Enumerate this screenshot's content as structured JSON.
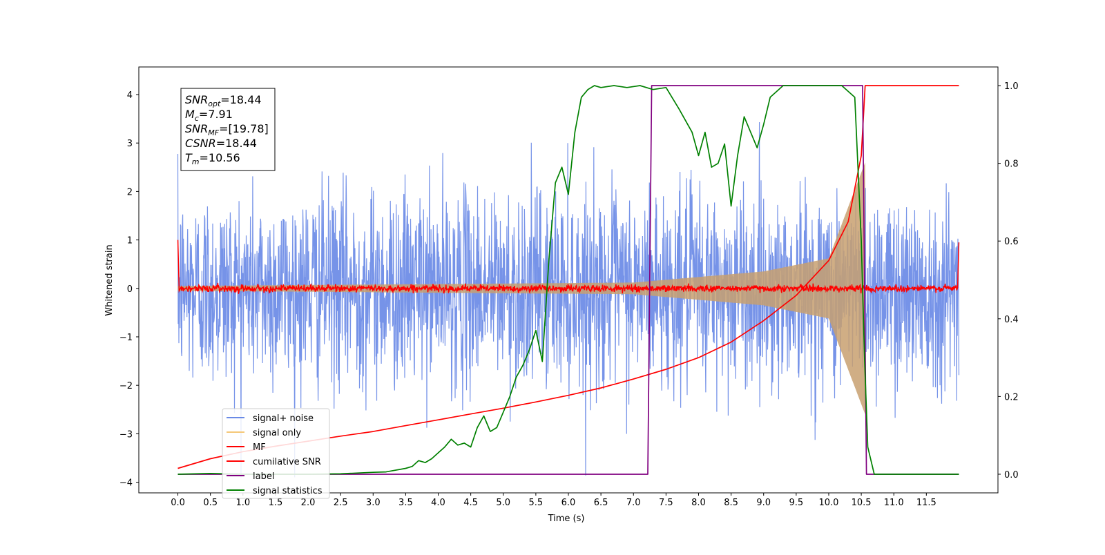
{
  "chart_data": {
    "type": "line",
    "xlabel": "Time (s)",
    "ylabel": "Whitened strain",
    "y2label": "",
    "xlim": [
      -0.6,
      12.6
    ],
    "ylim": [
      -4.22,
      4.57
    ],
    "y2lim": [
      -0.048,
      1.048
    ],
    "xticks": [
      "0.0",
      "0.5",
      "1.0",
      "1.5",
      "2.0",
      "2.5",
      "3.0",
      "3.5",
      "4.0",
      "4.5",
      "5.0",
      "5.5",
      "6.0",
      "6.5",
      "7.0",
      "7.5",
      "8.0",
      "8.5",
      "9.0",
      "9.5",
      "10.0",
      "10.5",
      "11.0",
      "11.5"
    ],
    "yticks": [
      "4",
      "3",
      "2",
      "1",
      "0",
      "−1",
      "−2",
      "−3",
      "−4"
    ],
    "y2ticks": [
      "1.0",
      "0.8",
      "0.6",
      "0.4",
      "0.2",
      "0.0"
    ],
    "annotations": [
      {
        "sym": "SNR",
        "sub": "opt",
        "eq": "=18.44"
      },
      {
        "sym": "M",
        "sub": "c",
        "eq": "=7.91"
      },
      {
        "sym": "SNR",
        "sub": "MF",
        "eq": "=[19.78]"
      },
      {
        "sym": "CSNR",
        "sub": "",
        "eq": "=18.44"
      },
      {
        "sym": "T",
        "sub": "m",
        "eq": "=10.56"
      }
    ],
    "legend": {
      "placement": "lower-left",
      "entries": [
        {
          "label": "signal+ noise",
          "color": "#6a8ae6"
        },
        {
          "label": "signal only",
          "color": "#f5c878"
        },
        {
          "label": "MF",
          "color": "#ff0000"
        },
        {
          "label": "cumilative SNR",
          "color": "#ff0000"
        },
        {
          "label": "label",
          "color": "#800080"
        },
        {
          "label": "signal statistics",
          "color": "#008000"
        }
      ]
    },
    "series": [
      {
        "name": "signal+ noise",
        "axis": "left",
        "kind": "noise",
        "color": "#6a8ae6",
        "x_range": [
          0,
          12
        ],
        "sd": 1.0
      },
      {
        "name": "signal only",
        "axis": "left",
        "kind": "chirp",
        "color": "#c8a070",
        "x_range": [
          0,
          10.56
        ],
        "amplitude_at": [
          [
            0,
            0.05
          ],
          [
            7,
            0.12
          ],
          [
            9,
            0.35
          ],
          [
            10,
            0.62
          ],
          [
            10.56,
            2.6
          ]
        ]
      },
      {
        "name": "MF",
        "axis": "left",
        "kind": "mf",
        "color": "#ff0000",
        "x": [
          0.0,
          0.02,
          0.05,
          11.98,
          12.0
        ],
        "y": [
          1.0,
          -0.05,
          0.0,
          0.0,
          0.95
        ]
      },
      {
        "name": "cumilative SNR",
        "axis": "right",
        "color": "#ff0000",
        "x": [
          0.0,
          0.5,
          1.0,
          1.5,
          2.0,
          2.5,
          3.0,
          3.5,
          4.0,
          4.5,
          5.0,
          5.5,
          6.0,
          6.5,
          7.0,
          7.5,
          8.0,
          8.5,
          9.0,
          9.5,
          10.0,
          10.3,
          10.5,
          10.56,
          12.0
        ],
        "y": [
          0.015,
          0.04,
          0.058,
          0.072,
          0.085,
          0.098,
          0.11,
          0.125,
          0.14,
          0.155,
          0.17,
          0.186,
          0.203,
          0.222,
          0.245,
          0.27,
          0.3,
          0.34,
          0.395,
          0.46,
          0.55,
          0.65,
          0.82,
          1.0,
          1.0
        ]
      },
      {
        "name": "label",
        "axis": "right",
        "color": "#800080",
        "x": [
          0.0,
          7.22,
          7.28,
          10.52,
          10.58,
          12.0
        ],
        "y": [
          0.0,
          0.0,
          1.0,
          1.0,
          0.0,
          0.0
        ]
      },
      {
        "name": "signal statistics",
        "axis": "right",
        "color": "#008000",
        "x": [
          0.0,
          0.5,
          1.0,
          1.5,
          2.0,
          2.5,
          3.0,
          3.2,
          3.5,
          3.6,
          3.7,
          3.8,
          3.9,
          4.0,
          4.1,
          4.2,
          4.3,
          4.4,
          4.5,
          4.6,
          4.7,
          4.8,
          4.9,
          5.0,
          5.1,
          5.2,
          5.3,
          5.4,
          5.5,
          5.6,
          5.7,
          5.8,
          5.9,
          6.0,
          6.1,
          6.2,
          6.3,
          6.4,
          6.5,
          6.7,
          6.9,
          7.1,
          7.3,
          7.5,
          7.7,
          7.9,
          8.0,
          8.1,
          8.2,
          8.3,
          8.4,
          8.5,
          8.6,
          8.7,
          8.8,
          8.9,
          9.0,
          9.1,
          9.3,
          9.6,
          9.9,
          10.2,
          10.4,
          10.5,
          10.55,
          10.6,
          10.7,
          12.0
        ],
        "y": [
          0.0,
          0.002,
          0.0,
          0.0,
          0.0,
          0.001,
          0.005,
          0.006,
          0.015,
          0.02,
          0.035,
          0.03,
          0.04,
          0.055,
          0.07,
          0.09,
          0.075,
          0.08,
          0.07,
          0.12,
          0.15,
          0.11,
          0.12,
          0.16,
          0.2,
          0.25,
          0.28,
          0.32,
          0.37,
          0.29,
          0.55,
          0.75,
          0.79,
          0.72,
          0.88,
          0.97,
          0.99,
          1.0,
          0.995,
          1.0,
          0.995,
          1.0,
          0.99,
          0.995,
          0.94,
          0.88,
          0.82,
          0.88,
          0.79,
          0.8,
          0.85,
          0.69,
          0.82,
          0.92,
          0.88,
          0.84,
          0.9,
          0.97,
          1.0,
          1.0,
          1.0,
          1.0,
          0.97,
          0.6,
          0.3,
          0.07,
          0.0,
          0.0
        ]
      }
    ]
  }
}
